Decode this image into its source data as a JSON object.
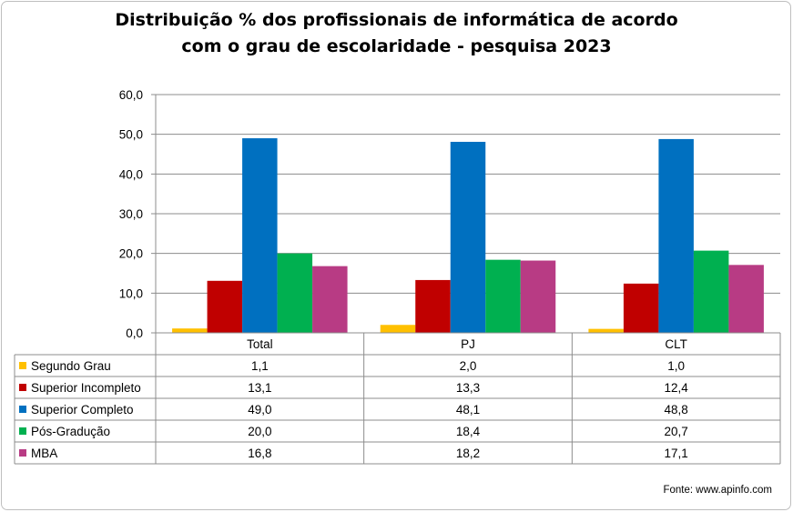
{
  "chart_data": {
    "type": "bar",
    "title_lines": [
      "Distribuição % dos profissionais de informática de acordo",
      "com o grau de escolaridade - pesquisa 2023"
    ],
    "categories": [
      "Total",
      "PJ",
      "CLT"
    ],
    "ylim": [
      0,
      60
    ],
    "ytick_labels": [
      "0,0",
      "10,0",
      "20,0",
      "30,0",
      "40,0",
      "50,0",
      "60,0"
    ],
    "grid": true,
    "legend": "data-table",
    "series": [
      {
        "name": "Segundo Grau",
        "color": "#ffc000",
        "values": [
          1.1,
          2.0,
          1.0
        ],
        "labels": [
          "1,1",
          "2,0",
          "1,0"
        ]
      },
      {
        "name": "Superior Incompleto",
        "color": "#c00000",
        "values": [
          13.1,
          13.3,
          12.4
        ],
        "labels": [
          "13,1",
          "13,3",
          "12,4"
        ]
      },
      {
        "name": "Superior Completo",
        "color": "#0070c0",
        "values": [
          49.0,
          48.1,
          48.8
        ],
        "labels": [
          "49,0",
          "48,1",
          "48,8"
        ]
      },
      {
        "name": "Pós-Gradução",
        "color": "#00b050",
        "values": [
          20.0,
          18.4,
          20.7
        ],
        "labels": [
          "20,0",
          "18,4",
          "20,7"
        ]
      },
      {
        "name": "MBA",
        "color": "#b83b84",
        "values": [
          16.8,
          18.2,
          17.1
        ],
        "labels": [
          "16,8",
          "18,2",
          "17,1"
        ]
      }
    ]
  },
  "source": "Fonte:  www.apinfo.com"
}
